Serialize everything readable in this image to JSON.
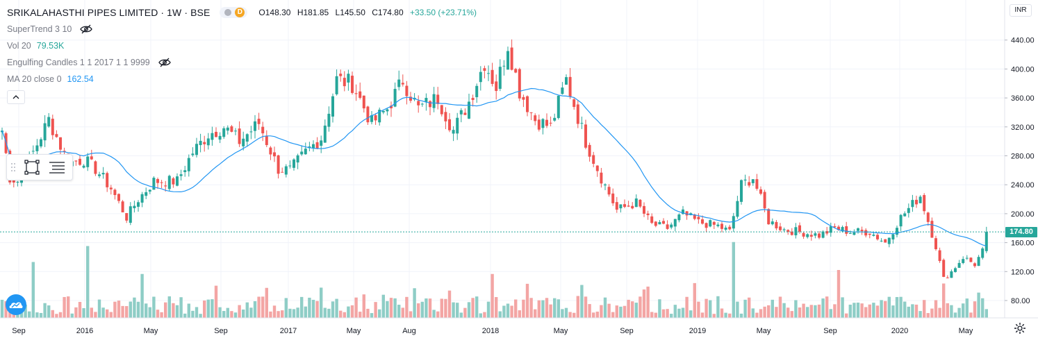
{
  "header": {
    "title": "SRIKALAHASTHI PIPES LIMITED · 1W · BSE",
    "open": "O148.30",
    "high": "H181.85",
    "low": "L145.50",
    "close": "C174.80",
    "change": "+33.50 (+23.71%)",
    "badge": "D"
  },
  "indicators": [
    {
      "name": "SuperTrend 3 10",
      "value": "",
      "icon": "eye-off-icon"
    },
    {
      "name": "Vol 20",
      "value": "79.53K",
      "icon": ""
    },
    {
      "name": "Engulfing Candles 1 1 2017 1 1 9999",
      "value": "",
      "icon": "eye-off-icon"
    },
    {
      "name": "MA 20 close 0",
      "value": "162.54",
      "icon": ""
    }
  ],
  "price_axis": {
    "currency": "INR",
    "last_price_label": "174.80"
  },
  "colors": {
    "up": "#26a69a",
    "down": "#ef5350",
    "vol_up": "#8ecdc6",
    "vol_down": "#f3a5a4",
    "ma": "#2196f3",
    "grid": "#f0f3fa"
  },
  "chart_data": {
    "type": "candlestick",
    "timeframe": "1W",
    "y_ticks": [
      80,
      120,
      160,
      200,
      240,
      280,
      320,
      360,
      400,
      440
    ],
    "ylim": [
      50,
      465
    ],
    "last_price": 174.8,
    "x_labels": [
      "Sep",
      "2016",
      "May",
      "Sep",
      "2017",
      "May",
      "Aug",
      "2018",
      "May",
      "Sep",
      "2019",
      "May",
      "Sep",
      "2020",
      "May"
    ],
    "anchors": [
      {
        "week": 0,
        "price": 315
      },
      {
        "week": 2,
        "price": 250
      },
      {
        "week": 4,
        "price": 245
      },
      {
        "week": 8,
        "price": 285
      },
      {
        "week": 12,
        "price": 330
      },
      {
        "week": 17,
        "price": 270
      },
      {
        "week": 21,
        "price": 275
      },
      {
        "week": 24,
        "price": 262
      },
      {
        "week": 28,
        "price": 235
      },
      {
        "week": 32,
        "price": 195
      },
      {
        "week": 35,
        "price": 220
      },
      {
        "week": 39,
        "price": 245
      },
      {
        "week": 45,
        "price": 245
      },
      {
        "week": 49,
        "price": 285
      },
      {
        "week": 53,
        "price": 310
      },
      {
        "week": 57,
        "price": 320
      },
      {
        "week": 61,
        "price": 300
      },
      {
        "week": 66,
        "price": 325
      },
      {
        "week": 71,
        "price": 262
      },
      {
        "week": 74,
        "price": 260
      },
      {
        "week": 78,
        "price": 285
      },
      {
        "week": 82,
        "price": 305
      },
      {
        "week": 86,
        "price": 385
      },
      {
        "week": 90,
        "price": 380
      },
      {
        "week": 95,
        "price": 325
      },
      {
        "week": 99,
        "price": 345
      },
      {
        "week": 103,
        "price": 385
      },
      {
        "week": 107,
        "price": 345
      },
      {
        "week": 112,
        "price": 360
      },
      {
        "week": 116,
        "price": 315
      },
      {
        "week": 120,
        "price": 355
      },
      {
        "week": 124,
        "price": 410
      },
      {
        "week": 127,
        "price": 375
      },
      {
        "week": 130,
        "price": 435
      },
      {
        "week": 133,
        "price": 370
      },
      {
        "week": 137,
        "price": 330
      },
      {
        "week": 141,
        "price": 320
      },
      {
        "week": 145,
        "price": 385
      },
      {
        "week": 150,
        "price": 300
      },
      {
        "week": 154,
        "price": 250
      },
      {
        "week": 158,
        "price": 205
      },
      {
        "week": 163,
        "price": 215
      },
      {
        "week": 167,
        "price": 185
      },
      {
        "week": 171,
        "price": 180
      },
      {
        "week": 175,
        "price": 200
      },
      {
        "week": 179,
        "price": 188
      },
      {
        "week": 184,
        "price": 183
      },
      {
        "week": 187,
        "price": 175
      },
      {
        "week": 190,
        "price": 240
      },
      {
        "week": 193,
        "price": 250
      },
      {
        "week": 197,
        "price": 190
      },
      {
        "week": 201,
        "price": 178
      },
      {
        "week": 205,
        "price": 175
      },
      {
        "week": 210,
        "price": 170
      },
      {
        "week": 214,
        "price": 180
      },
      {
        "week": 218,
        "price": 175
      },
      {
        "week": 223,
        "price": 175
      },
      {
        "week": 227,
        "price": 160
      },
      {
        "week": 231,
        "price": 195
      },
      {
        "week": 236,
        "price": 225
      },
      {
        "week": 238,
        "price": 190
      },
      {
        "week": 240,
        "price": 155
      },
      {
        "week": 242,
        "price": 110
      },
      {
        "week": 244,
        "price": 120
      },
      {
        "week": 247,
        "price": 140
      },
      {
        "week": 250,
        "price": 130
      },
      {
        "week": 252,
        "price": 148
      },
      {
        "week": 253,
        "price": 174.8
      }
    ],
    "volume_spikes": [
      {
        "week": 22,
        "relative": 0.9
      },
      {
        "week": 8,
        "relative": 0.7
      },
      {
        "week": 36,
        "relative": 0.55
      },
      {
        "week": 126,
        "relative": 0.55
      },
      {
        "week": 188,
        "relative": 0.95
      },
      {
        "week": 215,
        "relative": 0.6
      }
    ]
  }
}
